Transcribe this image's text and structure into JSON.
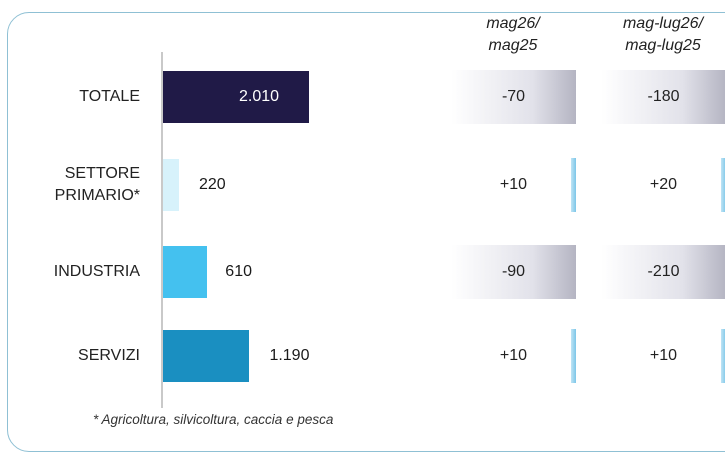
{
  "chart_data": {
    "type": "bar",
    "orientation": "horizontal",
    "categories": [
      "TOTALE",
      "SETTORE PRIMARIO*",
      "INDUSTRIA",
      "SERVIZI"
    ],
    "category_lines": [
      [
        "TOTALE"
      ],
      [
        "SETTORE",
        "PRIMARIO*"
      ],
      [
        "INDUSTRIA"
      ],
      [
        "SERVIZI"
      ]
    ],
    "values": [
      2010,
      220,
      610,
      1190
    ],
    "value_labels": [
      "2.010",
      "220",
      "610",
      "1.190"
    ],
    "bar_colors": [
      "#201a47",
      "#d7f2fb",
      "#44c1ef",
      "#1a8fc1"
    ],
    "xlim": [
      0,
      2010
    ],
    "grid": false,
    "columns": [
      {
        "header_lines": [
          "mag26/",
          "mag25"
        ],
        "values": [
          "-70",
          "+10",
          "-90",
          "+10"
        ]
      },
      {
        "header_lines": [
          "mag-lug26/",
          "mag-lug25"
        ],
        "values": [
          "-180",
          "+20",
          "-210",
          "+10"
        ]
      }
    ],
    "footnote": "* Agricoltura, silvicoltura, caccia e pesca"
  }
}
